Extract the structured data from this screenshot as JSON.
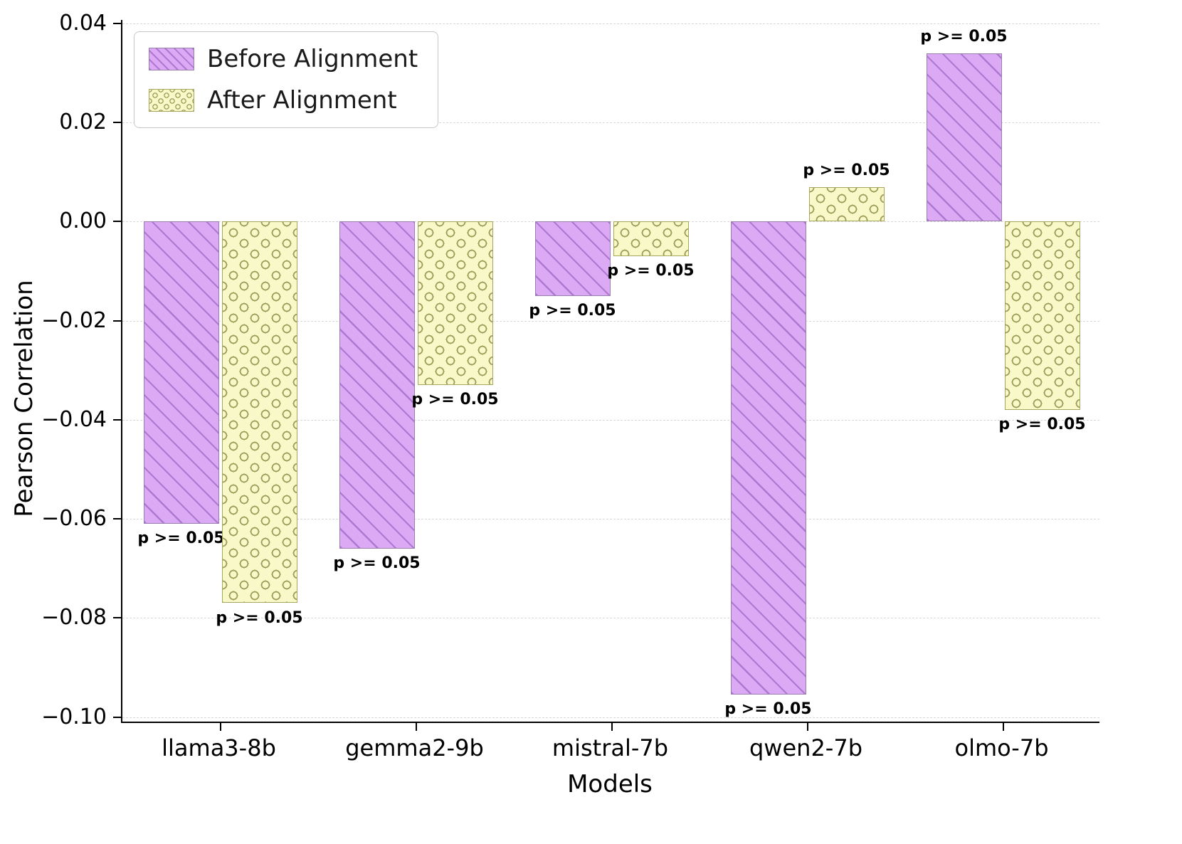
{
  "chart_data": {
    "type": "bar",
    "title": "",
    "xlabel": "Models",
    "ylabel": "Pearson Correlation",
    "categories": [
      "llama3-8b",
      "gemma2-9b",
      "mistral-7b",
      "qwen2-7b",
      "olmo-7b"
    ],
    "series": [
      {
        "name": "Before Alignment",
        "fill_color": "#dcaaf5",
        "edge_color": "#9a7fae",
        "hatch": "diagonal-lines",
        "values": [
          -0.061,
          -0.066,
          -0.015,
          -0.0955,
          0.034
        ]
      },
      {
        "name": "After Alignment",
        "fill_color": "#f8f8c9",
        "edge_color": "#a6a65e",
        "hatch": "circles",
        "values": [
          -0.077,
          -0.033,
          -0.007,
          0.007,
          -0.038
        ]
      }
    ],
    "annotation_text": "p >= 0.05",
    "yticks": [
      0.04,
      0.02,
      0.0,
      -0.02,
      -0.04,
      -0.06,
      -0.08,
      -0.1
    ],
    "ylim": [
      -0.1,
      0.04
    ],
    "grid": true,
    "grid_style": "dashed",
    "legend_position": "upper left"
  }
}
